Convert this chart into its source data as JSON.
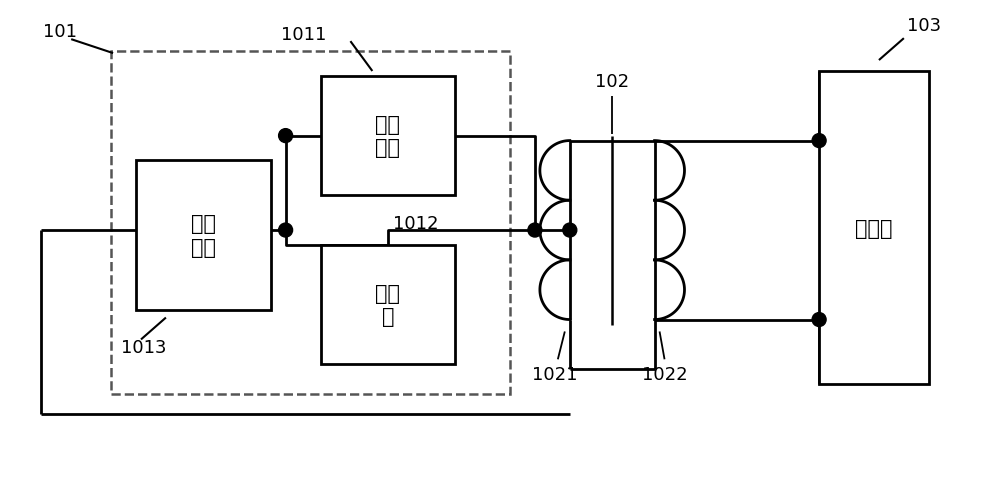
{
  "bg_color": "#ffffff",
  "fig_width": 10.0,
  "fig_height": 4.81,
  "label_101": "101",
  "label_102": "102",
  "label_103": "103",
  "label_1011": "1011",
  "label_1012": "1012",
  "label_1013": "1013",
  "label_1021": "1021",
  "label_1022": "1022",
  "text_fadian": "发热\n器件",
  "text_xianliu": "限流\n模块",
  "text_wenkong": "温控\n器",
  "text_cikong": "磁控管",
  "font_cn": 15,
  "font_label": 13
}
